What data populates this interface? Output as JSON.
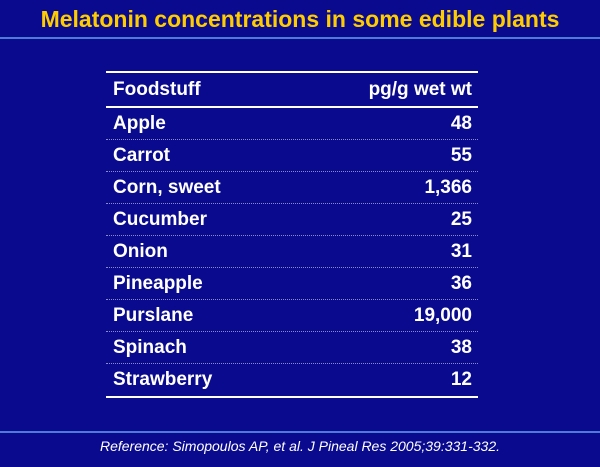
{
  "title": "Melatonin concentrations in some edible plants",
  "table": {
    "headers": [
      "Foodstuff",
      "pg/g wet wt"
    ],
    "rows": [
      {
        "food": "Apple",
        "value": "48"
      },
      {
        "food": "Carrot",
        "value": "55"
      },
      {
        "food": "Corn, sweet",
        "value": "1,366"
      },
      {
        "food": "Cucumber",
        "value": "25"
      },
      {
        "food": "Onion",
        "value": "31"
      },
      {
        "food": "Pineapple",
        "value": "36"
      },
      {
        "food": "Purslane",
        "value": "19,000"
      },
      {
        "food": "Spinach",
        "value": "38"
      },
      {
        "food": "Strawberry",
        "value": "12"
      }
    ]
  },
  "reference": "Reference: Simopoulos AP, et al.  J Pineal Res 2005;39:331-332.",
  "colors": {
    "background": "#0a0a8e",
    "title": "#ffcc00",
    "rule": "#4f7bd8",
    "text": "#ffffff"
  }
}
